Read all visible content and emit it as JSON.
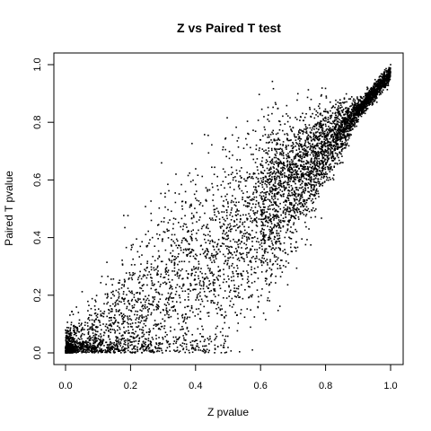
{
  "chart_data": {
    "type": "scatter",
    "title": "Z vs Paired T test",
    "xlabel": "Z pvalue",
    "ylabel": "Paired T pvalue",
    "xlim": [
      0,
      1
    ],
    "ylim": [
      0,
      1
    ],
    "x_ticks": [
      "0.0",
      "0.2",
      "0.4",
      "0.6",
      "0.8",
      "1.0"
    ],
    "y_ticks": [
      "0.0",
      "0.2",
      "0.4",
      "0.6",
      "0.8",
      "1.0"
    ],
    "grid": false,
    "legend": "none",
    "marker_color": "#000000",
    "n_points_approx": 6000,
    "distribution_description_values": {
      "x_range": [
        0,
        1
      ],
      "y_range": [
        0,
        1
      ],
      "correlation": "strong positive, denser near (1,1) and along bottom near y=0",
      "sample_points": [
        [
          0.0,
          0.0
        ],
        [
          0.01,
          0.02
        ],
        [
          0.02,
          0.01
        ],
        [
          0.05,
          0.03
        ],
        [
          0.1,
          0.05
        ],
        [
          0.15,
          0.08
        ],
        [
          0.2,
          0.1
        ],
        [
          0.25,
          0.12
        ],
        [
          0.3,
          0.15
        ],
        [
          0.35,
          0.2
        ],
        [
          0.4,
          0.22
        ],
        [
          0.45,
          0.28
        ],
        [
          0.5,
          0.32
        ],
        [
          0.55,
          0.38
        ],
        [
          0.6,
          0.42
        ],
        [
          0.65,
          0.48
        ],
        [
          0.7,
          0.55
        ],
        [
          0.75,
          0.62
        ],
        [
          0.8,
          0.7
        ],
        [
          0.85,
          0.76
        ],
        [
          0.9,
          0.84
        ],
        [
          0.95,
          0.92
        ],
        [
          0.98,
          0.97
        ],
        [
          1.0,
          1.0
        ]
      ]
    }
  }
}
